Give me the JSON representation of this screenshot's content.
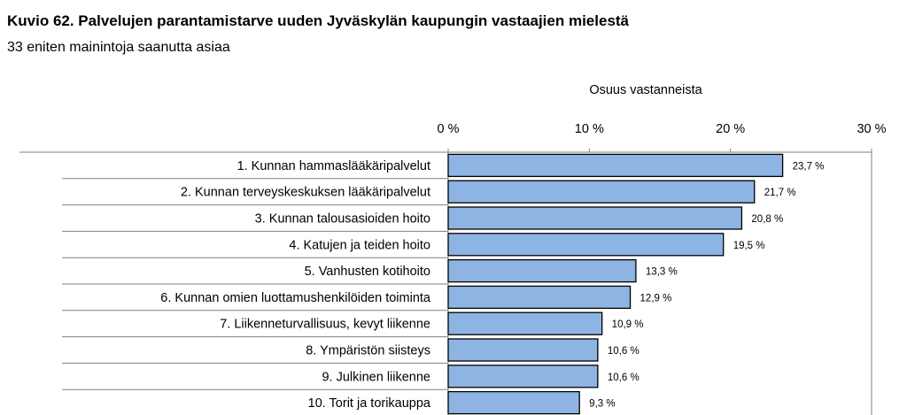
{
  "chart_data": {
    "type": "bar",
    "orientation": "horizontal",
    "title": "Kuvio 62. Palvelujen parantamistarve uuden Jyväskylän kaupungin vastaajien mielestä",
    "subtitle": "33 eniten mainintoja saanutta asiaa",
    "xlabel": "Osuus vastanneista",
    "xlim": [
      0,
      30
    ],
    "x_ticks": [
      "0 %",
      "10 %",
      "20 %",
      "30 %"
    ],
    "x_axis_position": "top",
    "grid": false,
    "bar_color": "#8eb4e3",
    "bar_border_color": "#000000",
    "categories": [
      "1. Kunnan hammaslääkäripalvelut",
      "2. Kunnan terveyskeskuksen lääkäripalvelut",
      "3. Kunnan talousasioiden hoito",
      "4. Katujen ja teiden hoito",
      "5. Vanhusten kotihoito",
      "6. Kunnan omien luottamushenkilöiden toiminta",
      "7. Liikenneturvallisuus, kevyt liikenne",
      "8. Ympäristön siisteys",
      "9. Julkinen liikenne",
      "10. Torit ja torikauppa"
    ],
    "values": [
      23.7,
      21.7,
      20.8,
      19.5,
      13.3,
      12.9,
      10.9,
      10.6,
      10.6,
      9.3
    ],
    "value_labels": [
      "23,7 %",
      "21,7 %",
      "20,8 %",
      "19,5 %",
      "13,3 %",
      "12,9 %",
      "10,9 %",
      "10,6 %",
      "10,6 %",
      "9,3 %"
    ]
  }
}
